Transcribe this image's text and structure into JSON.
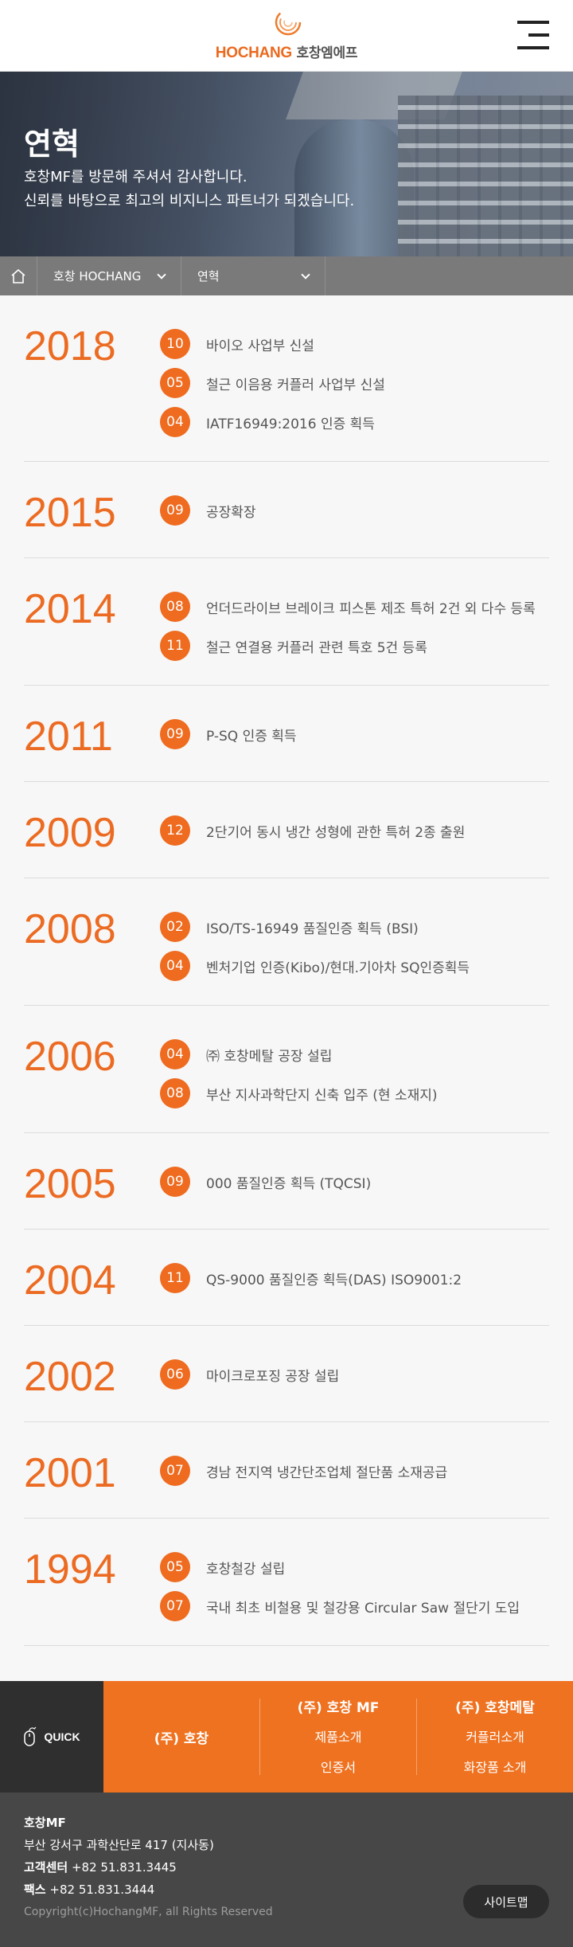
{
  "header": {
    "logo_en": "HOCHANG",
    "logo_ko": "호창엠에프"
  },
  "hero": {
    "title": "연혁",
    "line1": "호창MF를 방문해 주셔서 감사합니다.",
    "line2": "신뢰를 바탕으로 최고의 비지니스 파트너가 되겠습니다."
  },
  "breadcrumb": {
    "level1": "호창 HOCHANG",
    "level2": "연혁"
  },
  "timeline": [
    {
      "year": "2018",
      "events": [
        {
          "month": "10",
          "text": "바이오 사업부 신설"
        },
        {
          "month": "05",
          "text": "철근 이음용 커플러 사업부 신설"
        },
        {
          "month": "04",
          "text": "IATF16949:2016 인증 획득"
        }
      ]
    },
    {
      "year": "2015",
      "events": [
        {
          "month": "09",
          "text": "공장확장"
        }
      ]
    },
    {
      "year": "2014",
      "events": [
        {
          "month": "08",
          "text": "언더드라이브 브레이크 피스톤 제조 특허 2건 외 다수 등록"
        },
        {
          "month": "11",
          "text": "철근 연결용 커플러 관련 특호 5건 등록"
        }
      ]
    },
    {
      "year": "2011",
      "events": [
        {
          "month": "09",
          "text": "P-SQ 인증 획득"
        }
      ]
    },
    {
      "year": "2009",
      "events": [
        {
          "month": "12",
          "text": "2단기어 동시 냉간 성형에 관한 특허 2종 출원"
        }
      ]
    },
    {
      "year": "2008",
      "events": [
        {
          "month": "02",
          "text": "ISO/TS-16949 품질인증 획득 (BSI)"
        },
        {
          "month": "04",
          "text": "벤처기업 인증(Kibo)/현대.기아차 SQ인증획득"
        }
      ]
    },
    {
      "year": "2006",
      "events": [
        {
          "month": "04",
          "text": "㈜ 호창메탈 공장 설립"
        },
        {
          "month": "08",
          "text": "부산 지사과학단지 신축 입주 (현 소재지)"
        }
      ]
    },
    {
      "year": "2005",
      "events": [
        {
          "month": "09",
          "text": "000 품질인증 획득 (TQCSI)"
        }
      ]
    },
    {
      "year": "2004",
      "events": [
        {
          "month": "11",
          "text": "QS-9000 품질인증 획득(DAS)  ISO9001:2"
        }
      ]
    },
    {
      "year": "2002",
      "events": [
        {
          "month": "06",
          "text": "마이크로포징 공장 설립"
        }
      ]
    },
    {
      "year": "2001",
      "events": [
        {
          "month": "07",
          "text": "경남 전지역 냉간단조업체 절단품 소재공급"
        }
      ]
    },
    {
      "year": "1994",
      "events": [
        {
          "month": "05",
          "text": "호창철강 설립"
        },
        {
          "month": "07",
          "text": "국내 최초 비철용 및 철강용 Circular Saw 절단기 도입"
        }
      ]
    }
  ],
  "quick": {
    "label": "QUICK",
    "col1_title": "(주) 호창",
    "col2_title": "(주) 호창 MF",
    "col2_link1": "제품소개",
    "col2_link2": "인증서",
    "col3_title": "(주) 호창메탈",
    "col3_link1": "커플러소개",
    "col3_link2": "화장품 소개"
  },
  "footer": {
    "company": "호창MF",
    "address": "부산 강서구 과학산단로 417 (지사동)",
    "tel_label": "고객센터",
    "tel": "+82 51.831.3445",
    "fax_label": "팩스",
    "fax": "+82 51.831.3444",
    "copyright": "Copyright(c)HochangMF, all Rights Reserved",
    "sitemap": "사이트맵"
  },
  "colors": {
    "accent": "#ee6b1f",
    "footer_bg": "#474747",
    "quick_dark": "#2f2f2f"
  }
}
